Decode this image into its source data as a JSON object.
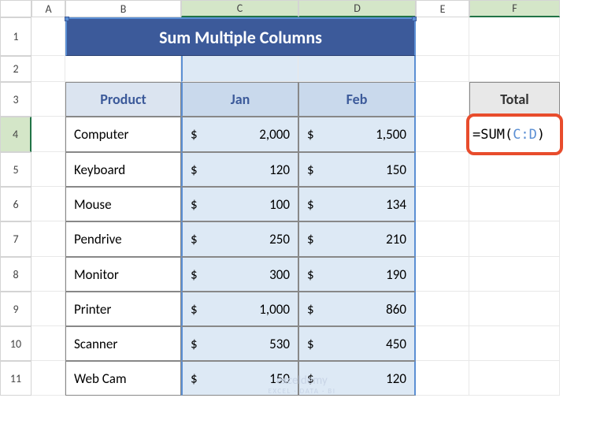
{
  "columns": [
    "A",
    "B",
    "C",
    "D",
    "E",
    "F"
  ],
  "rows": [
    "1",
    "2",
    "3",
    "4",
    "5",
    "6",
    "7",
    "8",
    "9",
    "10",
    "11"
  ],
  "title": "Sum Multiple Columns",
  "headers": {
    "product": "Product",
    "jan": "Jan",
    "feb": "Feb",
    "total": "Total"
  },
  "data": [
    {
      "product": "Computer",
      "jan": "2,000",
      "feb": "1,500"
    },
    {
      "product": "Keyboard",
      "jan": "120",
      "feb": "150"
    },
    {
      "product": "Mouse",
      "jan": "100",
      "feb": "134"
    },
    {
      "product": "Pendrive",
      "jan": "250",
      "feb": "210"
    },
    {
      "product": "Monitor",
      "jan": "300",
      "feb": "190"
    },
    {
      "product": "Printer",
      "jan": "1,000",
      "feb": "860"
    },
    {
      "product": "Scanner",
      "jan": "530",
      "feb": "450"
    },
    {
      "product": "Web Cam",
      "jan": "150",
      "feb": "120"
    }
  ],
  "currency_symbol": "$",
  "formula": {
    "prefix": "=SUM(",
    "range": "C:D",
    "suffix": ")"
  },
  "colors": {
    "title_bg": "#3c5a9a",
    "header_bg": "#dbe4f0",
    "header_fg": "#3c5a9a",
    "selected_bg": "#dde9f5",
    "range_color": "#5b8fd4",
    "formula_border": "#e84c2c",
    "total_bg": "#e8e8e8"
  },
  "watermark": {
    "main": "exceldemy",
    "sub": "EXCEL · DATA · BI"
  },
  "selected_cols": [
    "C",
    "D"
  ],
  "active_cell": "F4"
}
